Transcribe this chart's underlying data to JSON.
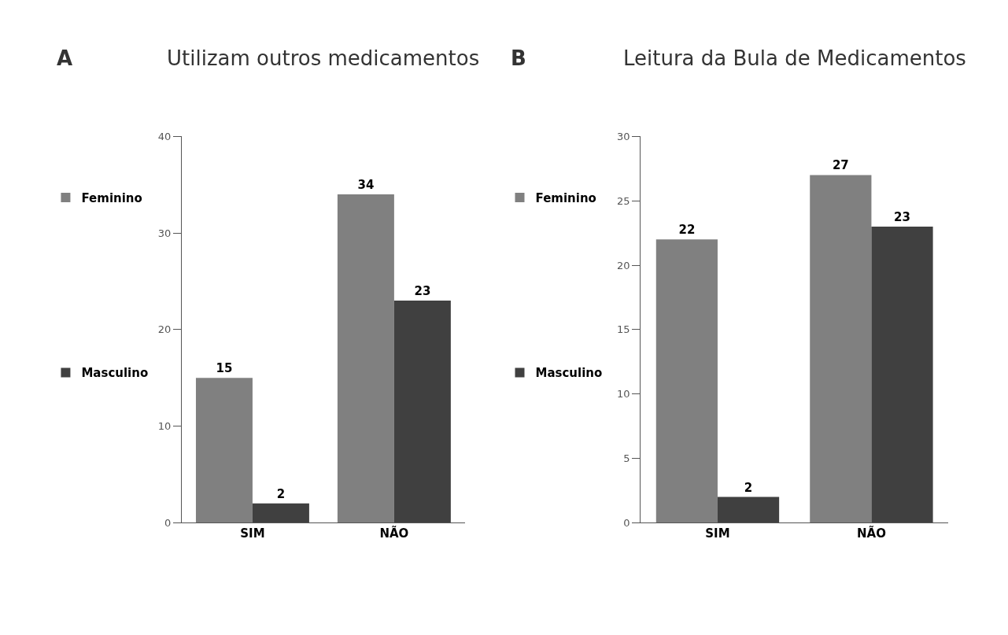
{
  "chart_data": [
    {
      "type": "bar",
      "title": "Utilizam outros medicamentos",
      "annotations": [
        "A"
      ],
      "categories": [
        "SIM",
        "NÃO"
      ],
      "series": [
        {
          "name": "Feminino",
          "color": "#808080",
          "values": [
            15,
            34
          ]
        },
        {
          "name": "Masculino",
          "color": "#404040",
          "values": [
            2,
            23
          ]
        }
      ],
      "ylim": [
        0,
        40
      ],
      "yticks": [
        0,
        10,
        20,
        30,
        40
      ],
      "data_labels": true,
      "legend": "left"
    },
    {
      "type": "bar",
      "title": "Leitura da Bula de Medicamentos",
      "annotations": [
        "B"
      ],
      "categories": [
        "SIM",
        "NÃO"
      ],
      "series": [
        {
          "name": "Feminino",
          "color": "#808080",
          "values": [
            22,
            27
          ]
        },
        {
          "name": "Masculino",
          "color": "#404040",
          "values": [
            2,
            23
          ]
        }
      ],
      "ylim": [
        0,
        30
      ],
      "yticks": [
        0,
        5,
        10,
        15,
        20,
        25,
        30
      ],
      "data_labels": true,
      "legend": "left"
    }
  ]
}
